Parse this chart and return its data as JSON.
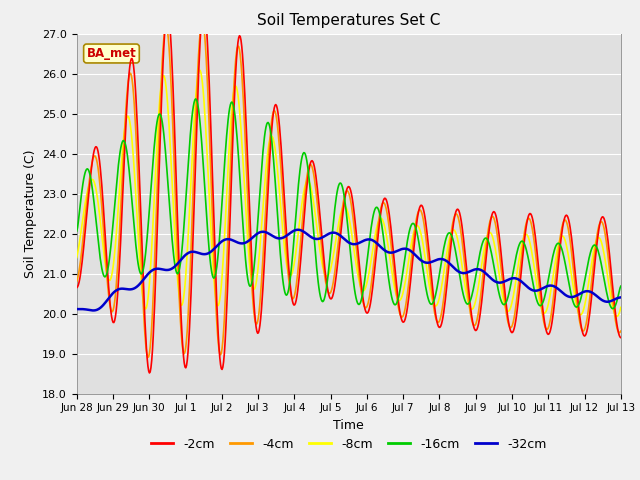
{
  "title": "Soil Temperatures Set C",
  "xlabel": "Time",
  "ylabel": "Soil Temperature (C)",
  "ylim": [
    18.0,
    27.0
  ],
  "yticks": [
    18.0,
    19.0,
    20.0,
    21.0,
    22.0,
    23.0,
    24.0,
    25.0,
    26.0,
    27.0
  ],
  "xtick_labels": [
    "Jun 28",
    "Jun 29",
    "Jun 30",
    "Jul 1",
    "Jul 2",
    "Jul 3",
    "Jul 4",
    "Jul 5",
    "Jul 6",
    "Jul 7",
    "Jul 8",
    "Jul 9",
    "Jul 10",
    "Jul 11",
    "Jul 12",
    "Jul 13"
  ],
  "legend_labels": [
    "-2cm",
    "-4cm",
    "-8cm",
    "-16cm",
    "-32cm"
  ],
  "legend_colors": [
    "#ff0000",
    "#ff9900",
    "#ffff00",
    "#00cc00",
    "#0000cc"
  ],
  "line_widths": [
    1.2,
    1.2,
    1.2,
    1.2,
    1.8
  ],
  "annotation_text": "BA_met",
  "annotation_color": "#cc0000",
  "annotation_bg": "#ffffcc",
  "fig_bg": "#f0f0f0",
  "ax_bg": "#e0e0e0"
}
